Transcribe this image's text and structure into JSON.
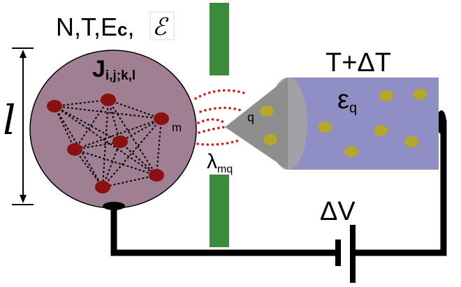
{
  "labels": {
    "system_vars_prefix": "N,T,E",
    "system_vars_sub": "c",
    "system_vars_sep": ",",
    "system_vars_script": "ℰ",
    "length_symbol": "l",
    "coupling_main": "J",
    "coupling_sub": "i,j;k,l",
    "node_m": "m",
    "tip_q": "q",
    "hopping_main": "λ",
    "hopping_sub": "mq",
    "reservoir_temp": "T+ΔT",
    "reservoir_energy_main": "ε",
    "reservoir_energy_sub": "q",
    "bias": "ΔV"
  },
  "colors": {
    "dot_sphere": "#a07f93",
    "dot_sphere_stroke": "#000000",
    "node": "#8b1010",
    "barrier": "#3c8a3c",
    "tunnel_dots": "#e01010",
    "lead_body": "#8f8fc6",
    "lead_face": "#a3a0a6",
    "tip_cone": "#8e8e8e",
    "lead_particles": "#b3a82a",
    "wire": "#000000"
  }
}
